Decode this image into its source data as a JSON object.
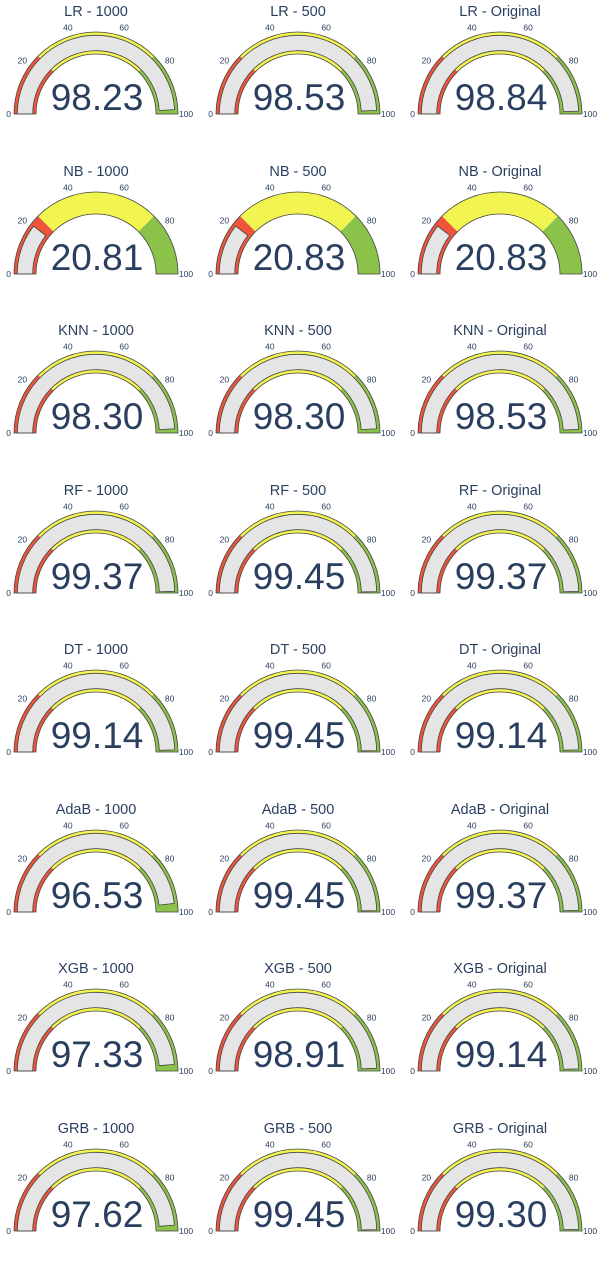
{
  "colors": {
    "low": "#ef553b",
    "mid": "#f2f54f",
    "high": "#8bc34a",
    "bar": "#e5e5e5",
    "outline": "#444444",
    "text": "#2a3f5f"
  },
  "chart_data": [
    {
      "type": "gauge",
      "title": "LR - 1000",
      "value": 98.23,
      "value_label": "98.23",
      "range": [
        0,
        100
      ],
      "ticks": [
        "0",
        "20",
        "40",
        "60",
        "80",
        "100"
      ],
      "steps": [
        [
          0,
          25
        ],
        [
          25,
          75
        ],
        [
          75,
          100
        ]
      ]
    },
    {
      "type": "gauge",
      "title": "LR - 500",
      "value": 98.53,
      "value_label": "98.53",
      "range": [
        0,
        100
      ],
      "ticks": [
        "0",
        "20",
        "40",
        "60",
        "80",
        "100"
      ],
      "steps": [
        [
          0,
          25
        ],
        [
          25,
          75
        ],
        [
          75,
          100
        ]
      ]
    },
    {
      "type": "gauge",
      "title": "LR - Original",
      "value": 98.84,
      "value_label": "98.84",
      "range": [
        0,
        100
      ],
      "ticks": [
        "0",
        "20",
        "40",
        "60",
        "80",
        "100"
      ],
      "steps": [
        [
          0,
          25
        ],
        [
          25,
          75
        ],
        [
          75,
          100
        ]
      ]
    },
    {
      "type": "gauge",
      "title": "NB - 1000",
      "value": 20.81,
      "value_label": "20.81",
      "range": [
        0,
        100
      ],
      "ticks": [
        "0",
        "20",
        "40",
        "60",
        "80",
        "100"
      ],
      "steps": [
        [
          0,
          25
        ],
        [
          25,
          75
        ],
        [
          75,
          100
        ]
      ]
    },
    {
      "type": "gauge",
      "title": "NB - 500",
      "value": 20.83,
      "value_label": "20.83",
      "range": [
        0,
        100
      ],
      "ticks": [
        "0",
        "20",
        "40",
        "60",
        "80",
        "100"
      ],
      "steps": [
        [
          0,
          25
        ],
        [
          25,
          75
        ],
        [
          75,
          100
        ]
      ]
    },
    {
      "type": "gauge",
      "title": "NB - Original",
      "value": 20.83,
      "value_label": "20.83",
      "range": [
        0,
        100
      ],
      "ticks": [
        "0",
        "20",
        "40",
        "60",
        "80",
        "100"
      ],
      "steps": [
        [
          0,
          25
        ],
        [
          25,
          75
        ],
        [
          75,
          100
        ]
      ]
    },
    {
      "type": "gauge",
      "title": "KNN - 1000",
      "value": 98.3,
      "value_label": "98.30",
      "range": [
        0,
        100
      ],
      "ticks": [
        "0",
        "20",
        "40",
        "60",
        "80",
        "100"
      ],
      "steps": [
        [
          0,
          25
        ],
        [
          25,
          75
        ],
        [
          75,
          100
        ]
      ]
    },
    {
      "type": "gauge",
      "title": "KNN - 500",
      "value": 98.3,
      "value_label": "98.30",
      "range": [
        0,
        100
      ],
      "ticks": [
        "0",
        "20",
        "40",
        "60",
        "80",
        "100"
      ],
      "steps": [
        [
          0,
          25
        ],
        [
          25,
          75
        ],
        [
          75,
          100
        ]
      ]
    },
    {
      "type": "gauge",
      "title": "KNN - Original",
      "value": 98.53,
      "value_label": "98.53",
      "range": [
        0,
        100
      ],
      "ticks": [
        "0",
        "20",
        "40",
        "60",
        "80",
        "100"
      ],
      "steps": [
        [
          0,
          25
        ],
        [
          25,
          75
        ],
        [
          75,
          100
        ]
      ]
    },
    {
      "type": "gauge",
      "title": "RF - 1000",
      "value": 99.37,
      "value_label": "99.37",
      "range": [
        0,
        100
      ],
      "ticks": [
        "0",
        "20",
        "40",
        "60",
        "80",
        "100"
      ],
      "steps": [
        [
          0,
          25
        ],
        [
          25,
          75
        ],
        [
          75,
          100
        ]
      ]
    },
    {
      "type": "gauge",
      "title": "RF - 500",
      "value": 99.45,
      "value_label": "99.45",
      "range": [
        0,
        100
      ],
      "ticks": [
        "0",
        "20",
        "40",
        "60",
        "80",
        "100"
      ],
      "steps": [
        [
          0,
          25
        ],
        [
          25,
          75
        ],
        [
          75,
          100
        ]
      ]
    },
    {
      "type": "gauge",
      "title": "RF - Original",
      "value": 99.37,
      "value_label": "99.37",
      "range": [
        0,
        100
      ],
      "ticks": [
        "0",
        "20",
        "40",
        "60",
        "80",
        "100"
      ],
      "steps": [
        [
          0,
          25
        ],
        [
          25,
          75
        ],
        [
          75,
          100
        ]
      ]
    },
    {
      "type": "gauge",
      "title": "DT - 1000",
      "value": 99.14,
      "value_label": "99.14",
      "range": [
        0,
        100
      ],
      "ticks": [
        "0",
        "20",
        "40",
        "60",
        "80",
        "100"
      ],
      "steps": [
        [
          0,
          25
        ],
        [
          25,
          75
        ],
        [
          75,
          100
        ]
      ]
    },
    {
      "type": "gauge",
      "title": "DT - 500",
      "value": 99.45,
      "value_label": "99.45",
      "range": [
        0,
        100
      ],
      "ticks": [
        "0",
        "20",
        "40",
        "60",
        "80",
        "100"
      ],
      "steps": [
        [
          0,
          25
        ],
        [
          25,
          75
        ],
        [
          75,
          100
        ]
      ]
    },
    {
      "type": "gauge",
      "title": "DT - Original",
      "value": 99.14,
      "value_label": "99.14",
      "range": [
        0,
        100
      ],
      "ticks": [
        "0",
        "20",
        "40",
        "60",
        "80",
        "100"
      ],
      "steps": [
        [
          0,
          25
        ],
        [
          25,
          75
        ],
        [
          75,
          100
        ]
      ]
    },
    {
      "type": "gauge",
      "title": "AdaB - 1000",
      "value": 96.53,
      "value_label": "96.53",
      "range": [
        0,
        100
      ],
      "ticks": [
        "0",
        "20",
        "40",
        "60",
        "80",
        "100"
      ],
      "steps": [
        [
          0,
          25
        ],
        [
          25,
          75
        ],
        [
          75,
          100
        ]
      ]
    },
    {
      "type": "gauge",
      "title": "AdaB - 500",
      "value": 99.45,
      "value_label": "99.45",
      "range": [
        0,
        100
      ],
      "ticks": [
        "0",
        "20",
        "40",
        "60",
        "80",
        "100"
      ],
      "steps": [
        [
          0,
          25
        ],
        [
          25,
          75
        ],
        [
          75,
          100
        ]
      ]
    },
    {
      "type": "gauge",
      "title": "AdaB - Original",
      "value": 99.37,
      "value_label": "99.37",
      "range": [
        0,
        100
      ],
      "ticks": [
        "0",
        "20",
        "40",
        "60",
        "80",
        "100"
      ],
      "steps": [
        [
          0,
          25
        ],
        [
          25,
          75
        ],
        [
          75,
          100
        ]
      ]
    },
    {
      "type": "gauge",
      "title": "XGB - 1000",
      "value": 97.33,
      "value_label": "97.33",
      "range": [
        0,
        100
      ],
      "ticks": [
        "0",
        "20",
        "40",
        "60",
        "80",
        "100"
      ],
      "steps": [
        [
          0,
          25
        ],
        [
          25,
          75
        ],
        [
          75,
          100
        ]
      ]
    },
    {
      "type": "gauge",
      "title": "XGB - 500",
      "value": 98.91,
      "value_label": "98.91",
      "range": [
        0,
        100
      ],
      "ticks": [
        "0",
        "20",
        "40",
        "60",
        "80",
        "100"
      ],
      "steps": [
        [
          0,
          25
        ],
        [
          25,
          75
        ],
        [
          75,
          100
        ]
      ]
    },
    {
      "type": "gauge",
      "title": "XGB - Original",
      "value": 99.14,
      "value_label": "99.14",
      "range": [
        0,
        100
      ],
      "ticks": [
        "0",
        "20",
        "40",
        "60",
        "80",
        "100"
      ],
      "steps": [
        [
          0,
          25
        ],
        [
          25,
          75
        ],
        [
          75,
          100
        ]
      ]
    },
    {
      "type": "gauge",
      "title": "GRB - 1000",
      "value": 97.62,
      "value_label": "97.62",
      "range": [
        0,
        100
      ],
      "ticks": [
        "0",
        "20",
        "40",
        "60",
        "80",
        "100"
      ],
      "steps": [
        [
          0,
          25
        ],
        [
          25,
          75
        ],
        [
          75,
          100
        ]
      ]
    },
    {
      "type": "gauge",
      "title": "GRB - 500",
      "value": 99.45,
      "value_label": "99.45",
      "range": [
        0,
        100
      ],
      "ticks": [
        "0",
        "20",
        "40",
        "60",
        "80",
        "100"
      ],
      "steps": [
        [
          0,
          25
        ],
        [
          25,
          75
        ],
        [
          75,
          100
        ]
      ]
    },
    {
      "type": "gauge",
      "title": "GRB - Original",
      "value": 99.3,
      "value_label": "99.30",
      "range": [
        0,
        100
      ],
      "ticks": [
        "0",
        "20",
        "40",
        "60",
        "80",
        "100"
      ],
      "steps": [
        [
          0,
          25
        ],
        [
          25,
          75
        ],
        [
          75,
          100
        ]
      ]
    }
  ]
}
